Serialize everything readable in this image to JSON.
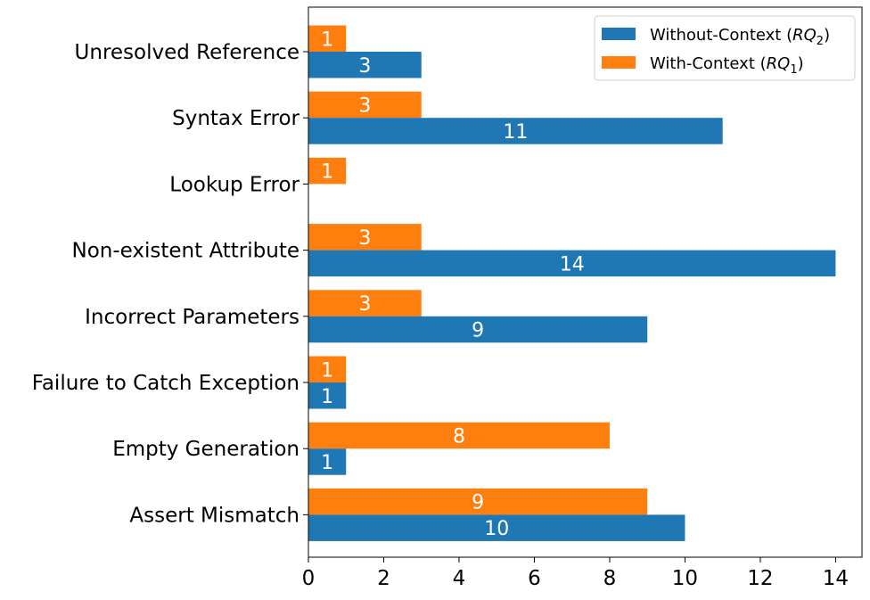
{
  "chart_data": {
    "type": "bar",
    "orientation": "horizontal",
    "categories": [
      "Unresolved Reference",
      "Syntax Error",
      "Lookup Error",
      "Non-existent Attribute",
      "Incorrect Parameters",
      "Failure to Catch Exception",
      "Empty Generation",
      "Assert Mismatch"
    ],
    "series": [
      {
        "name": "Without-Context (RQ₂)",
        "legend_text": "Without-Context (",
        "legend_math": "RQ",
        "legend_sub": "2",
        "color": "#1f77b4",
        "values": [
          3,
          11,
          0,
          14,
          9,
          1,
          1,
          10
        ],
        "value_labels": [
          "3",
          "11",
          "",
          "14",
          "9",
          "1",
          "1",
          "10"
        ]
      },
      {
        "name": "With-Context (RQ₁)",
        "legend_text": "With-Context (",
        "legend_math": "RQ",
        "legend_sub": "1",
        "color": "#ff7f0e",
        "values": [
          1,
          3,
          1,
          3,
          3,
          1,
          8,
          9
        ],
        "value_labels": [
          "1",
          "3",
          "1",
          "3",
          "3",
          "1",
          "8",
          "9"
        ]
      }
    ],
    "xlim": [
      0,
      14.7
    ],
    "xticks": [
      0,
      2,
      4,
      6,
      8,
      10,
      12,
      14
    ],
    "xtick_labels": [
      "0",
      "2",
      "4",
      "6",
      "8",
      "10",
      "12",
      "14"
    ],
    "title": "",
    "xlabel": "",
    "ylabel": "",
    "grid": false,
    "legend_position": "top-right"
  }
}
